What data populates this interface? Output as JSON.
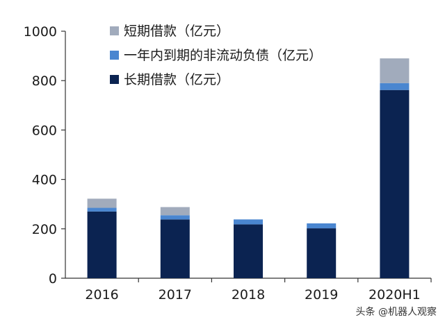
{
  "chart_data": {
    "type": "bar",
    "stacked": true,
    "categories": [
      "2016",
      "2017",
      "2018",
      "2019",
      "2020H1"
    ],
    "series": [
      {
        "name": "长期借款（亿元）",
        "color": "#0b2351",
        "values": [
          270,
          238,
          218,
          202,
          762
        ]
      },
      {
        "name": "一年内到期的非流动负债（亿元）",
        "color": "#4a86d0",
        "values": [
          15,
          17,
          20,
          20,
          28
        ]
      },
      {
        "name": "短期借款（亿元）",
        "color": "#a1abbc",
        "values": [
          37,
          33,
          0,
          0,
          100
        ]
      }
    ],
    "legend_order": [
      "短期借款（亿元）",
      "一年内到期的非流动负债（亿元）",
      "长期借款（亿元）"
    ],
    "legend_position": "top-center",
    "ylim": [
      0,
      1000
    ],
    "yticks": [
      "0",
      "200",
      "400",
      "600",
      "800",
      "1000"
    ],
    "grid": false
  },
  "watermark": "头条 @机器人观察"
}
